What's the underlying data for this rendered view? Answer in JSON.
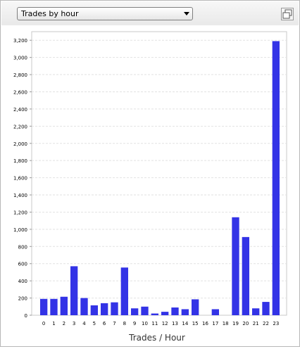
{
  "toolbar": {
    "dropdown_value": "Trades by hour",
    "popout_icon": "popout-window-icon"
  },
  "colors": {
    "bar": "#3333e6",
    "grid": "#e2e2e2",
    "axis": "#999999",
    "toolbar_bg": "#eeeeee"
  },
  "chart_data": {
    "type": "bar",
    "xlabel": "Trades / Hour",
    "ylabel": "",
    "title": "",
    "categories": [
      "0",
      "1",
      "2",
      "3",
      "4",
      "5",
      "6",
      "7",
      "8",
      "9",
      "10",
      "11",
      "12",
      "13",
      "14",
      "15",
      "16",
      "17",
      "18",
      "19",
      "20",
      "21",
      "22",
      "23"
    ],
    "values": [
      190,
      190,
      215,
      570,
      200,
      115,
      140,
      150,
      555,
      80,
      100,
      20,
      40,
      90,
      70,
      185,
      0,
      70,
      0,
      1140,
      910,
      80,
      155,
      3190
    ],
    "ylim": [
      0,
      3300
    ],
    "yticks": [
      "0",
      "200",
      "400",
      "600",
      "800",
      "1,000",
      "1,200",
      "1,400",
      "1,600",
      "1,800",
      "2,000",
      "2,200",
      "2,400",
      "2,600",
      "2,800",
      "3,000",
      "3,200"
    ],
    "ytick_values": [
      0,
      200,
      400,
      600,
      800,
      1000,
      1200,
      1400,
      1600,
      1800,
      2000,
      2200,
      2400,
      2600,
      2800,
      3000,
      3200
    ],
    "grid": true,
    "legend": "none"
  }
}
